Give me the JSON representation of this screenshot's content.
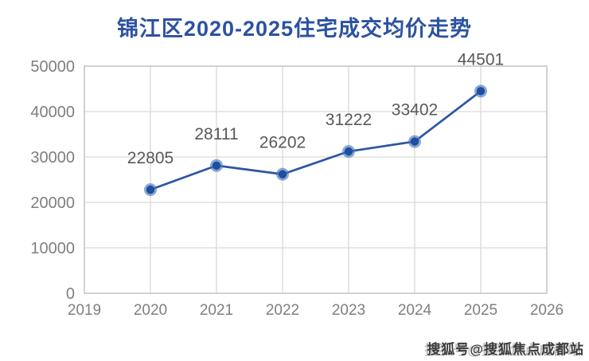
{
  "page": {
    "background": "#ffffff"
  },
  "chart_data": {
    "type": "line",
    "title": "锦江区2020-2025住宅成交均价走势",
    "x": [
      2020,
      2021,
      2022,
      2023,
      2024,
      2025
    ],
    "values": [
      22805,
      28111,
      26202,
      31222,
      33402,
      44501
    ],
    "data_labels": [
      "22805",
      "28111",
      "26202",
      "31222",
      "33402",
      "44501"
    ],
    "xlim": [
      2019,
      2026
    ],
    "ylim": [
      0,
      50000
    ],
    "x_ticks": [
      "2019",
      "2020",
      "2021",
      "2022",
      "2023",
      "2024",
      "2025",
      "2026"
    ],
    "y_ticks": [
      "0",
      "10000",
      "20000",
      "30000",
      "40000",
      "50000"
    ],
    "y_tick_values": [
      0,
      10000,
      20000,
      30000,
      40000,
      50000
    ],
    "grid": true,
    "legend_position": "none",
    "colors": {
      "title": "#2c52a0",
      "line": "#2e55a2",
      "marker_core": "#1f4e9f",
      "marker_halo": "#4a7ac0",
      "data_label": "#595959",
      "tick_label": "#7f7f7f",
      "gridline": "#d9d9d9",
      "plot_border": "#bfbfbf"
    }
  },
  "watermark": {
    "text": "搜狐号@搜狐焦点成都站"
  }
}
